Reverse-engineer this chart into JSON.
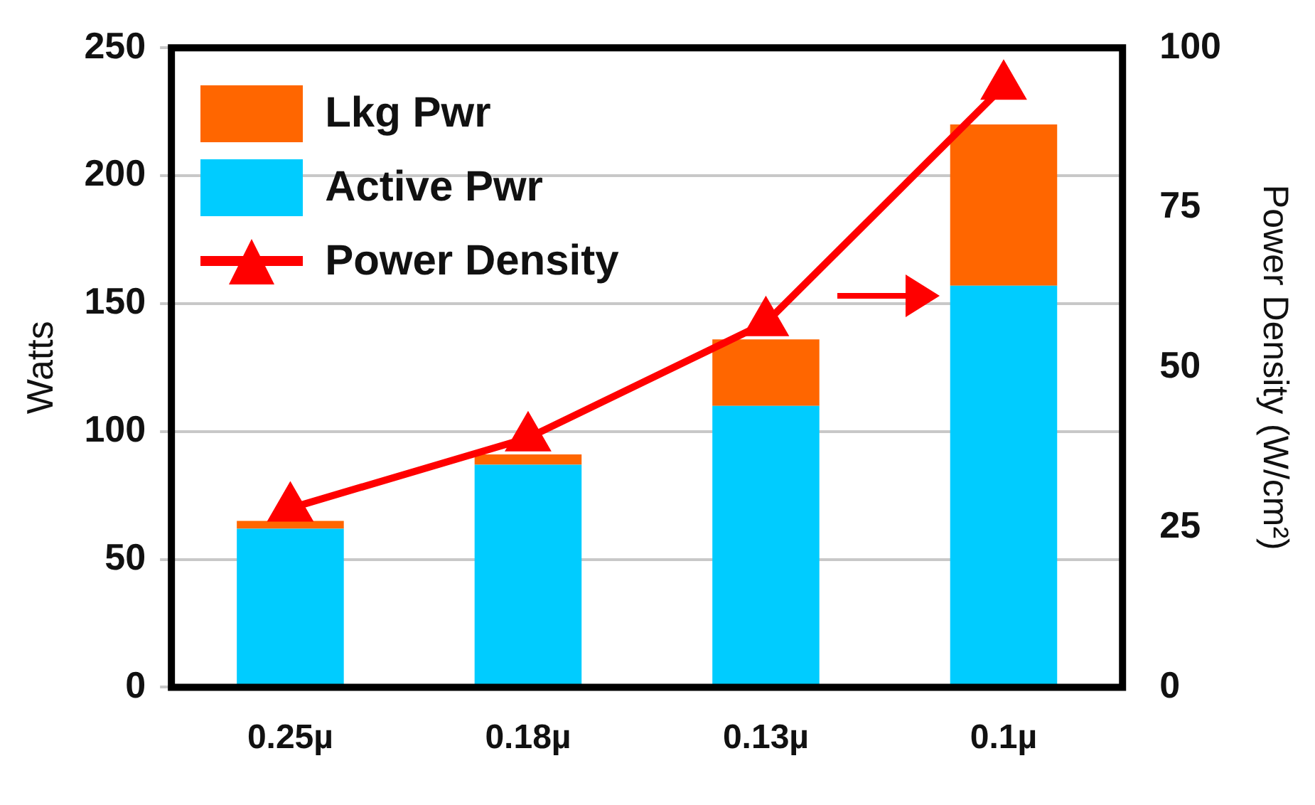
{
  "chart_data": {
    "type": "bar",
    "stacked": true,
    "categories": [
      "0.25µ",
      "0.18µ",
      "0.13µ",
      "0.1µ"
    ],
    "ylabel": "Watts",
    "y2label": "Power Density (W/cm²)",
    "ylim": [
      0,
      250
    ],
    "yticks": [
      0,
      50,
      100,
      150,
      200,
      250
    ],
    "y2lim": [
      0,
      100
    ],
    "y2ticks": [
      0,
      25,
      50,
      75,
      100
    ],
    "grid": "y",
    "legend": "top left",
    "marker": "triangle",
    "line_style": "solid",
    "series": [
      {
        "name": "Active Pwr",
        "color": "#00ccff",
        "values": [
          62,
          87,
          110,
          157
        ]
      },
      {
        "name": "Lkg Pwr",
        "color": "#ff6600",
        "values": [
          3,
          4,
          26,
          63
        ]
      },
      {
        "name": "Power Density",
        "type": "line",
        "axis": "y2",
        "color": "#ff0000",
        "values": [
          28,
          39,
          57,
          94
        ]
      }
    ]
  }
}
